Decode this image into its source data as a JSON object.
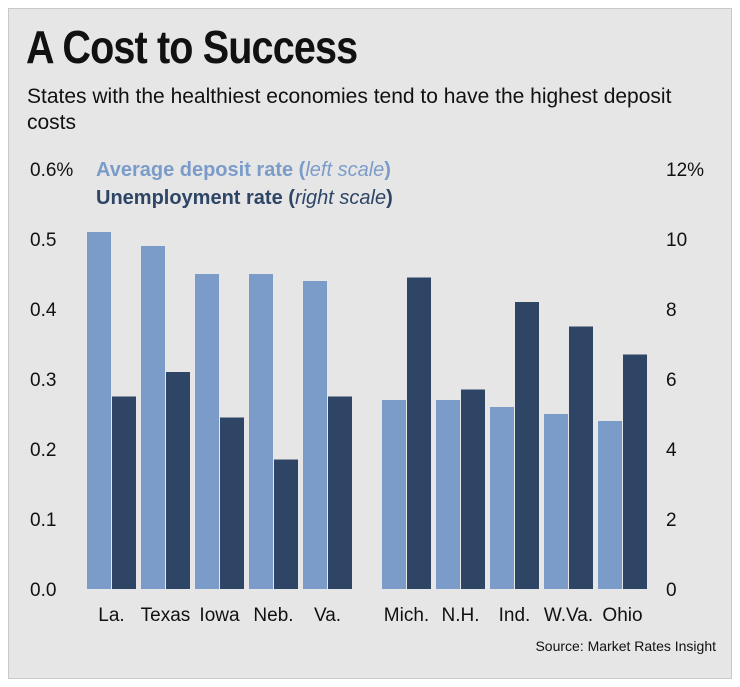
{
  "title": "A Cost to Success",
  "subtitle": "States with the healthiest economies tend to have the highest deposit costs",
  "legend": {
    "left_series_name": "Average deposit rate",
    "left_series_note": "left scale",
    "right_series_name": "Unemployment rate",
    "right_series_note": "right scale"
  },
  "source": "Source: Market Rates Insight",
  "colors": {
    "deposit": "#7b9cc9",
    "unemployment": "#2e4566",
    "background": "#e6e6e6",
    "axis_text": "#111111"
  },
  "chart_data": {
    "type": "bar",
    "title": "A Cost to Success",
    "categories": [
      "La.",
      "Texas",
      "Iowa",
      "Neb.",
      "Va.",
      "Mich.",
      "N.H.",
      "Ind.",
      "W.Va.",
      "Ohio"
    ],
    "series": [
      {
        "name": "Average deposit rate",
        "axis": "left",
        "unit": "%",
        "values": [
          0.51,
          0.49,
          0.45,
          0.45,
          0.44,
          0.27,
          0.27,
          0.26,
          0.25,
          0.24
        ]
      },
      {
        "name": "Unemployment rate",
        "axis": "right",
        "unit": "%",
        "values": [
          5.5,
          6.2,
          4.9,
          3.7,
          5.5,
          8.9,
          5.7,
          8.2,
          7.5,
          6.7
        ]
      }
    ],
    "left_axis": {
      "range": [
        0,
        0.6
      ],
      "ticks": [
        0.0,
        0.1,
        0.2,
        0.3,
        0.4,
        0.5,
        0.6
      ],
      "tick_labels": [
        "0.0",
        "0.1",
        "0.2",
        "0.3",
        "0.4",
        "0.5",
        "0.6%"
      ]
    },
    "right_axis": {
      "range": [
        0,
        12
      ],
      "ticks": [
        0,
        2,
        4,
        6,
        8,
        10,
        12
      ],
      "tick_labels": [
        "0",
        "2",
        "4",
        "6",
        "8",
        "10",
        "12%"
      ]
    },
    "grid": false,
    "legend_position": "top-left"
  }
}
